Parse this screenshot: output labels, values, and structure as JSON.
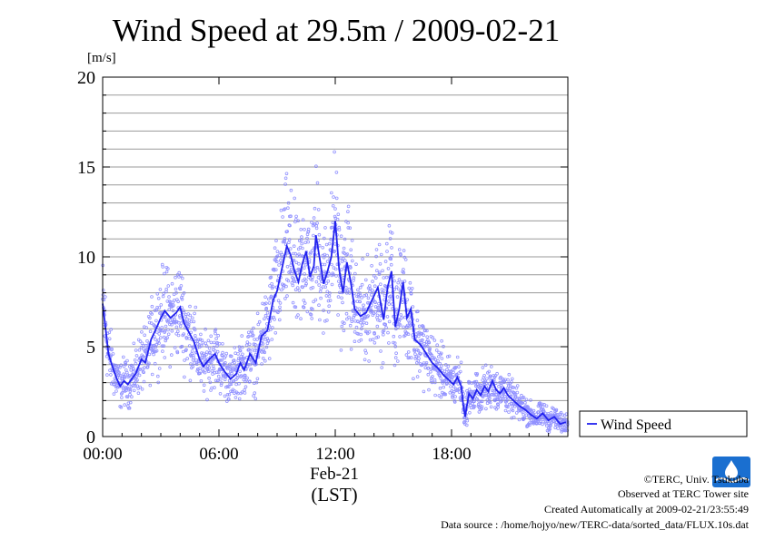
{
  "chart_data": {
    "type": "scatter",
    "title": "Wind Speed at 29.5m / 2009-02-21",
    "ylabel": "[m/s]",
    "ylim": [
      0,
      20
    ],
    "yticks": [
      0,
      5,
      10,
      15,
      20
    ],
    "xlim_hours": [
      0,
      24
    ],
    "xticks": [
      {
        "hour": 0,
        "label": "00:00"
      },
      {
        "hour": 6,
        "label": "06:00"
      },
      {
        "hour": 12,
        "label": "12:00"
      },
      {
        "hour": 18,
        "label": "18:00"
      }
    ],
    "xsublabel": "Feb-21",
    "xunit": "(LST)",
    "grid": true,
    "legend_position": "right",
    "series": [
      {
        "name": "Wind Speed",
        "color": "#2222ee",
        "x_hours": [
          0.0,
          0.1,
          0.3,
          0.5,
          0.7,
          0.9,
          1.1,
          1.3,
          1.5,
          1.7,
          2.0,
          2.2,
          2.5,
          2.8,
          3.0,
          3.2,
          3.5,
          3.8,
          4.0,
          4.2,
          4.5,
          4.7,
          5.0,
          5.2,
          5.5,
          5.8,
          6.0,
          6.3,
          6.6,
          6.9,
          7.1,
          7.3,
          7.6,
          7.9,
          8.2,
          8.5,
          8.8,
          9.0,
          9.3,
          9.5,
          9.7,
          9.9,
          10.1,
          10.3,
          10.5,
          10.7,
          10.9,
          11.0,
          11.2,
          11.4,
          11.6,
          11.8,
          12.0,
          12.2,
          12.4,
          12.6,
          12.8,
          13.0,
          13.3,
          13.6,
          13.9,
          14.2,
          14.5,
          14.7,
          14.9,
          15.1,
          15.3,
          15.5,
          15.7,
          15.9,
          16.1,
          16.4,
          16.7,
          17.0,
          17.3,
          17.6,
          17.9,
          18.1,
          18.3,
          18.5,
          18.6,
          18.7,
          18.9,
          19.1,
          19.3,
          19.5,
          19.7,
          19.9,
          20.1,
          20.3,
          20.5,
          20.7,
          20.9,
          21.1,
          21.3,
          21.5,
          21.8,
          22.1,
          22.4,
          22.7,
          23.0,
          23.3,
          23.6,
          23.9
        ],
        "y": [
          7.4,
          6.5,
          4.6,
          3.9,
          3.3,
          2.8,
          3.1,
          2.9,
          3.2,
          3.5,
          4.3,
          4.1,
          5.4,
          6.1,
          6.6,
          7.0,
          6.6,
          6.9,
          7.2,
          6.3,
          5.7,
          5.3,
          4.3,
          3.9,
          4.3,
          4.6,
          4.1,
          3.6,
          3.2,
          3.5,
          4.1,
          3.7,
          4.6,
          4.1,
          5.6,
          5.9,
          7.6,
          8.1,
          9.6,
          10.6,
          10.1,
          9.2,
          8.6,
          9.6,
          10.3,
          8.9,
          9.5,
          11.2,
          9.9,
          8.5,
          9.2,
          10.0,
          12.0,
          9.3,
          8.0,
          9.7,
          8.6,
          7.1,
          6.7,
          6.9,
          7.6,
          8.3,
          6.5,
          8.3,
          9.2,
          6.1,
          7.1,
          8.6,
          6.6,
          7.1,
          5.4,
          5.1,
          4.6,
          4.1,
          3.8,
          3.4,
          3.1,
          2.9,
          3.3,
          2.8,
          1.8,
          1.1,
          2.4,
          2.1,
          2.6,
          2.3,
          2.8,
          2.5,
          3.1,
          2.6,
          2.4,
          2.7,
          2.3,
          2.1,
          1.9,
          1.7,
          1.5,
          1.2,
          1.0,
          1.3,
          0.9,
          1.1,
          0.7,
          0.8
        ]
      }
    ]
  },
  "legend": {
    "label": "Wind Speed"
  },
  "footer": {
    "copyright": "©TERC, Univ. Tsukuba",
    "observed": "Observed at TERC Tower site",
    "created": "Created Automatically at 2009-02-21/23:55:49",
    "source": "Data source : /home/hojyo/new/TERC-data/sorted_data/FLUX.10s.dat"
  },
  "logo": {
    "text": "TERC",
    "color": "#1a6fd0"
  }
}
